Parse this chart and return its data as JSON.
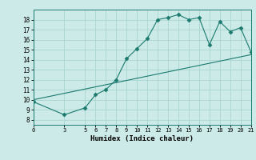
{
  "curve_x": [
    0,
    3,
    5,
    6,
    7,
    8,
    9,
    10,
    11,
    12,
    13,
    14,
    15,
    16,
    17,
    18,
    19,
    20,
    21
  ],
  "curve_y": [
    9.8,
    8.5,
    9.2,
    10.5,
    11.0,
    12.0,
    14.1,
    15.1,
    16.1,
    18.0,
    18.2,
    18.5,
    18.0,
    18.2,
    15.5,
    17.8,
    16.8,
    17.2,
    14.8
  ],
  "line_x": [
    0,
    21
  ],
  "line_y": [
    10.0,
    14.5
  ],
  "xlabel": "Humidex (Indice chaleur)",
  "xticks": [
    0,
    3,
    5,
    6,
    7,
    8,
    9,
    10,
    11,
    12,
    13,
    14,
    15,
    16,
    17,
    18,
    19,
    20,
    21
  ],
  "yticks": [
    8,
    9,
    10,
    11,
    12,
    13,
    14,
    15,
    16,
    17,
    18
  ],
  "ylim": [
    7.5,
    19.0
  ],
  "xlim": [
    0,
    21
  ],
  "bg_color": "#cceae7",
  "grid_color": "#aad4d0",
  "line_color": "#1a7a6e",
  "curve_color": "#1a7a6e",
  "marker": "D",
  "marker_size": 2.5
}
